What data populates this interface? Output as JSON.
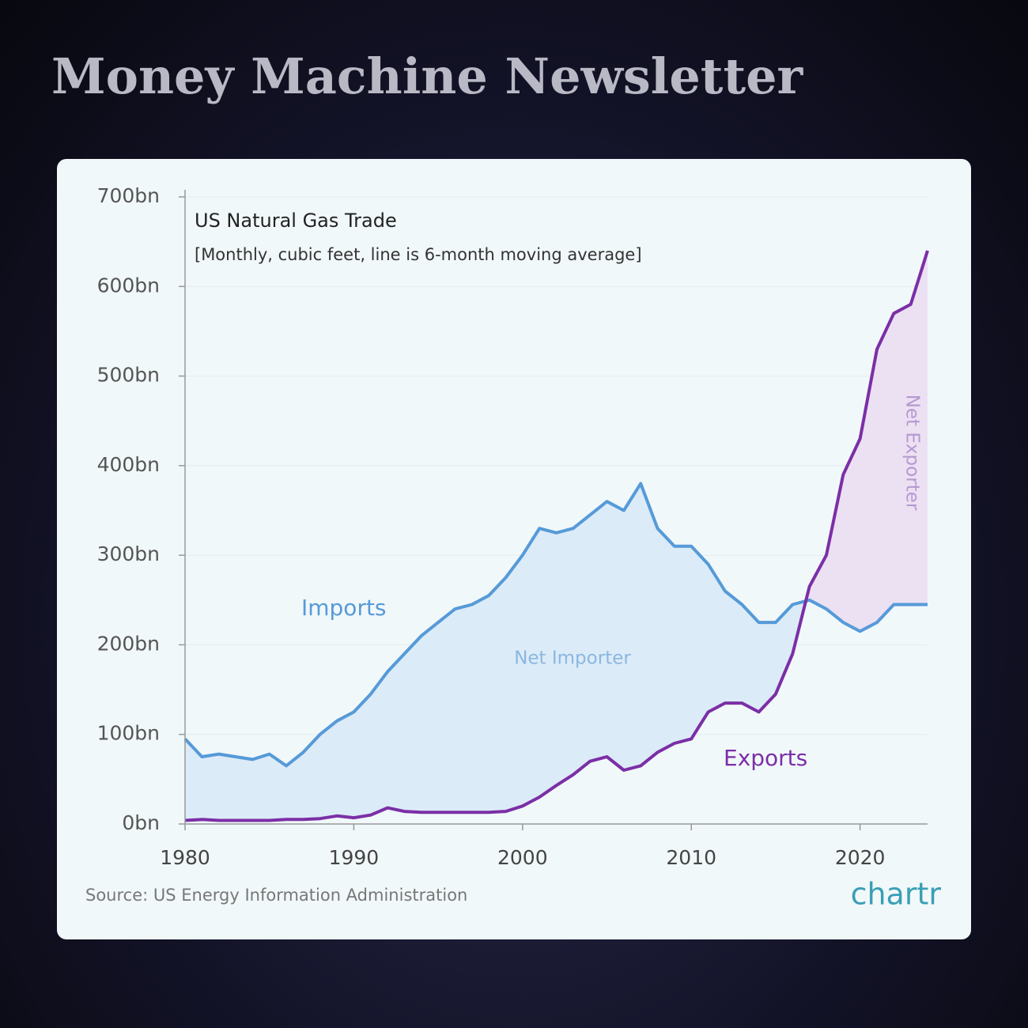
{
  "header": "Money Machine Newsletter",
  "chart_data": {
    "type": "line",
    "title": "US Natural Gas Trade",
    "subtitle": "[Monthly, cubic feet, line is 6-month moving average]",
    "source": "Source: US Energy Information Administration",
    "logo": "chartr",
    "annotations": [
      "Net Importer",
      "Net Exporter"
    ],
    "x": [
      1980,
      1981,
      1982,
      1983,
      1984,
      1985,
      1986,
      1987,
      1988,
      1989,
      1990,
      1991,
      1992,
      1993,
      1994,
      1995,
      1996,
      1997,
      1998,
      1999,
      2000,
      2001,
      2002,
      2003,
      2004,
      2005,
      2006,
      2007,
      2008,
      2009,
      2010,
      2011,
      2012,
      2013,
      2014,
      2015,
      2016,
      2017,
      2018,
      2019,
      2020,
      2021,
      2022,
      2023,
      2024
    ],
    "series": [
      {
        "name": "Imports",
        "color": "#569ad8",
        "area_color": "#dcebf8",
        "values": [
          95,
          75,
          78,
          75,
          72,
          78,
          65,
          80,
          100,
          115,
          125,
          145,
          170,
          190,
          210,
          225,
          240,
          245,
          255,
          275,
          300,
          330,
          325,
          330,
          345,
          360,
          350,
          380,
          330,
          310,
          310,
          290,
          260,
          245,
          225,
          225,
          245,
          250,
          240,
          225,
          215,
          225,
          245,
          245,
          245
        ]
      },
      {
        "name": "Exports",
        "color": "#7b2fa6",
        "area_color": "#ece0f3",
        "values": [
          4,
          5,
          4,
          4,
          4,
          4,
          5,
          5,
          6,
          9,
          7,
          10,
          18,
          14,
          13,
          13,
          13,
          13,
          13,
          14,
          20,
          30,
          43,
          55,
          70,
          75,
          60,
          65,
          80,
          90,
          95,
          125,
          135,
          135,
          125,
          145,
          190,
          265,
          300,
          390,
          430,
          530,
          570,
          580,
          640
        ]
      }
    ],
    "xlim": [
      1980,
      2024
    ],
    "xticks": [
      1980,
      1990,
      2000,
      2010,
      2020
    ],
    "ylim": [
      0,
      700
    ],
    "yticks": [
      {
        "value": 0,
        "label": "0bn"
      },
      {
        "value": 100,
        "label": "100bn"
      },
      {
        "value": 200,
        "label": "200bn"
      },
      {
        "value": 300,
        "label": "300bn"
      },
      {
        "value": 400,
        "label": "400bn"
      },
      {
        "value": 500,
        "label": "500bn"
      },
      {
        "value": 600,
        "label": "600bn"
      },
      {
        "value": 700,
        "label": "700bn"
      }
    ],
    "grid": true
  }
}
